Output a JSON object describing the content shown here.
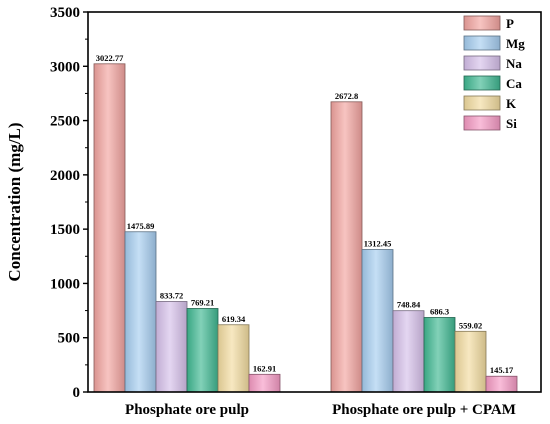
{
  "chart_data": {
    "type": "bar",
    "ylabel": "Concentration (mg/L)",
    "xlabel": "",
    "ylim": [
      0,
      3500
    ],
    "yticks": [
      0,
      500,
      1000,
      1500,
      2000,
      2500,
      3000,
      3500
    ],
    "categories": [
      "Phosphate ore pulp",
      "Phosphate ore pulp + CPAM"
    ],
    "legend_position": "top-right",
    "grid": false,
    "series": [
      {
        "name": "P",
        "color": "#f2a4a0",
        "values": [
          3022.77,
          2672.8
        ],
        "labels": [
          "3022.77",
          "2672.8"
        ]
      },
      {
        "name": "Mg",
        "color": "#a6cdf0",
        "values": [
          1475.89,
          1312.45
        ],
        "labels": [
          "1475.89",
          "1312.45"
        ]
      },
      {
        "name": "Na",
        "color": "#d6c0ea",
        "values": [
          833.72,
          748.84
        ],
        "labels": [
          "833.72",
          "748.84"
        ]
      },
      {
        "name": "Ca",
        "color": "#3fb892",
        "values": [
          769.21,
          686.3
        ],
        "labels": [
          "769.21",
          "686.3"
        ]
      },
      {
        "name": "K",
        "color": "#f2dca0",
        "values": [
          619.34,
          559.02
        ],
        "labels": [
          "619.34",
          "559.02"
        ]
      },
      {
        "name": "Si",
        "color": "#f59ac4",
        "values": [
          162.91,
          145.17
        ],
        "labels": [
          "162.91",
          "145.17"
        ]
      }
    ]
  }
}
